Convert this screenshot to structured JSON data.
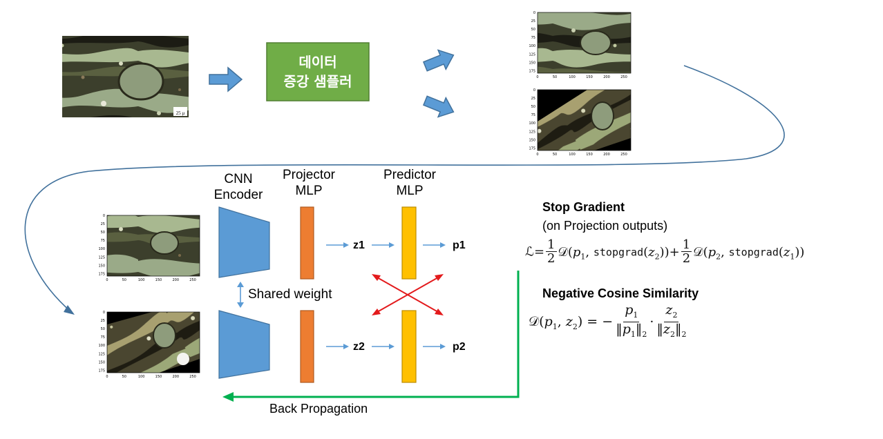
{
  "sampler_box": {
    "line1": "데이터",
    "line2": "증강 샘플러",
    "color": "#70ad47"
  },
  "scale_bar": "25 μ",
  "plot_axes": {
    "y_ticks": [
      "0",
      "25",
      "50",
      "75",
      "100",
      "125",
      "150",
      "175"
    ],
    "x_ticks": [
      "0",
      "50",
      "100",
      "150",
      "200",
      "250"
    ]
  },
  "encoder": {
    "line1": "CNN",
    "line2": "Encoder",
    "color": "#5b9bd5"
  },
  "projector": {
    "line1": "Projector",
    "line2": "MLP",
    "color": "#ed7d31"
  },
  "predictor": {
    "line1": "Predictor",
    "line2": "MLP",
    "color": "#ffc000"
  },
  "labels": {
    "z1": "z1",
    "z2": "z2",
    "p1": "p1",
    "p2": "p2"
  },
  "shared_weight": "Shared weight",
  "stop_gradient": {
    "title": "Stop Gradient",
    "subtitle": "(on Projection outputs)"
  },
  "negative_cosine": {
    "title": "Negative Cosine Similarity"
  },
  "back_propagation": "Back Propagation",
  "colors": {
    "arrow_blue": "#5b9bd5",
    "cross_red": "#e31a1c",
    "backprop_green": "#00b050",
    "curve": "#41719c"
  }
}
